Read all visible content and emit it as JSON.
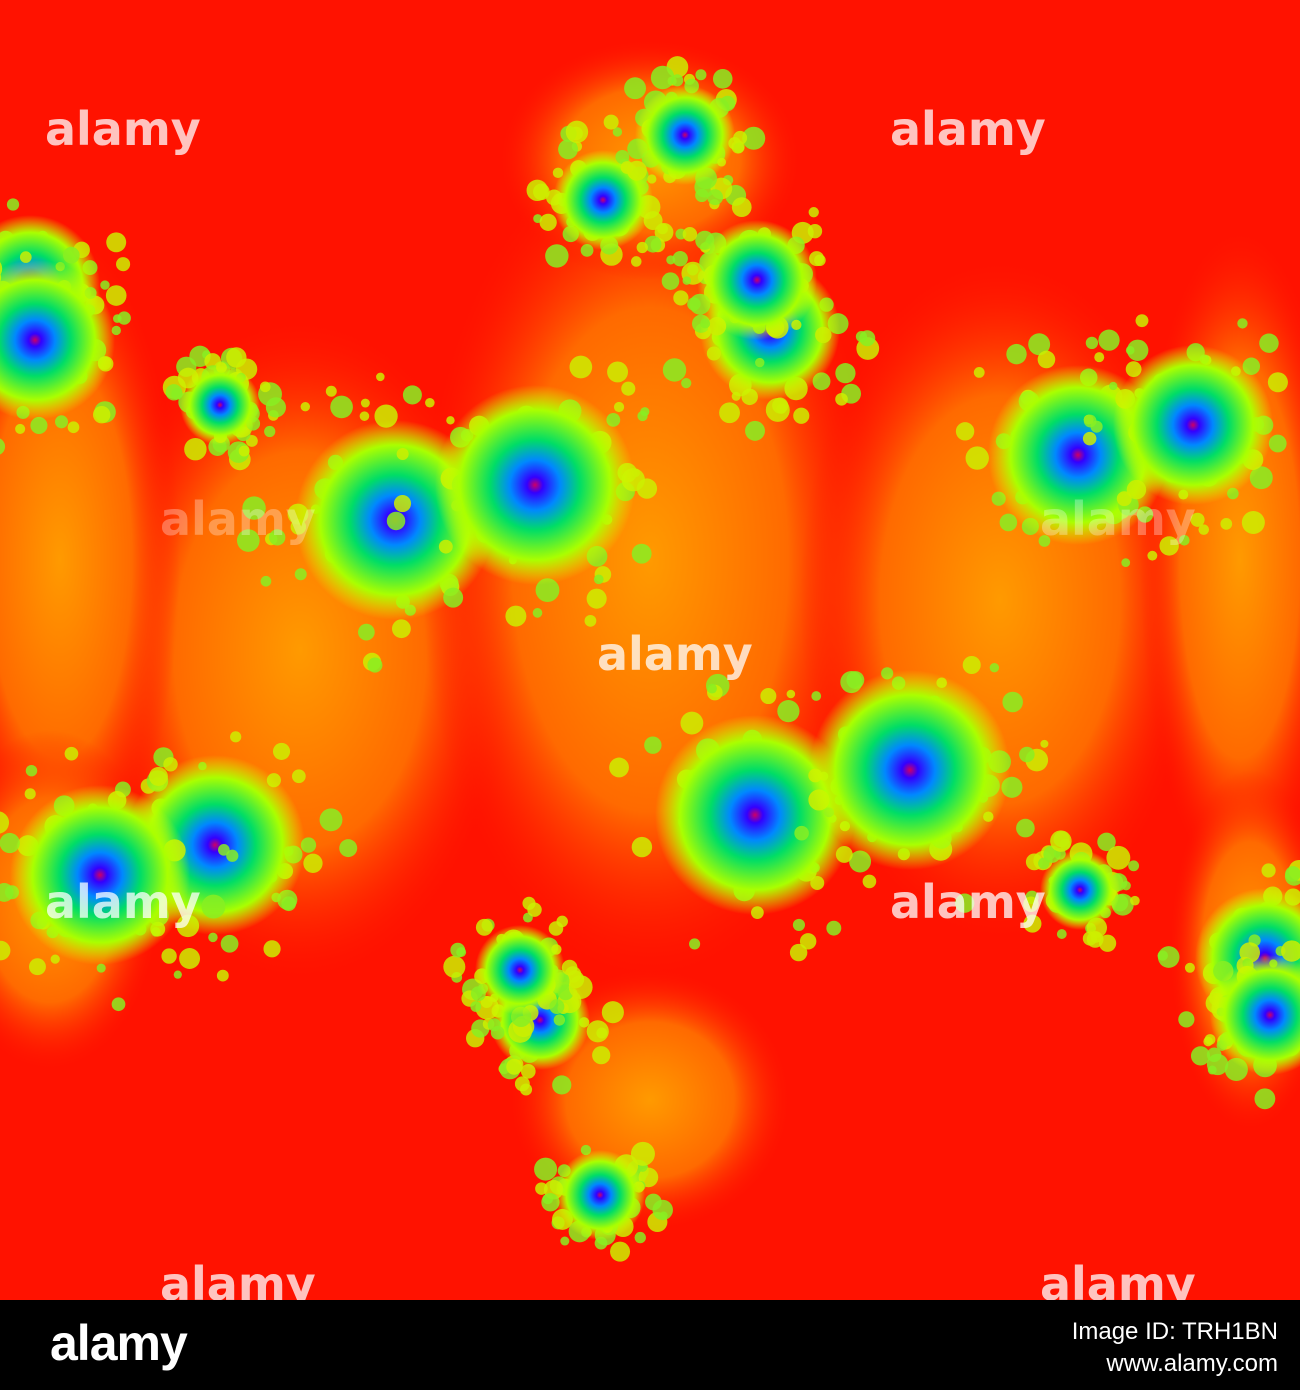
{
  "watermarks": [
    "alamy",
    "alamy",
    "alamy",
    "alamy",
    "alamy",
    "alamy",
    "alamy",
    "alamy",
    "alamy"
  ],
  "footer": {
    "logo": "alamy",
    "image_id": "Image ID: TRH1BN",
    "url": "www.alamy.com"
  }
}
